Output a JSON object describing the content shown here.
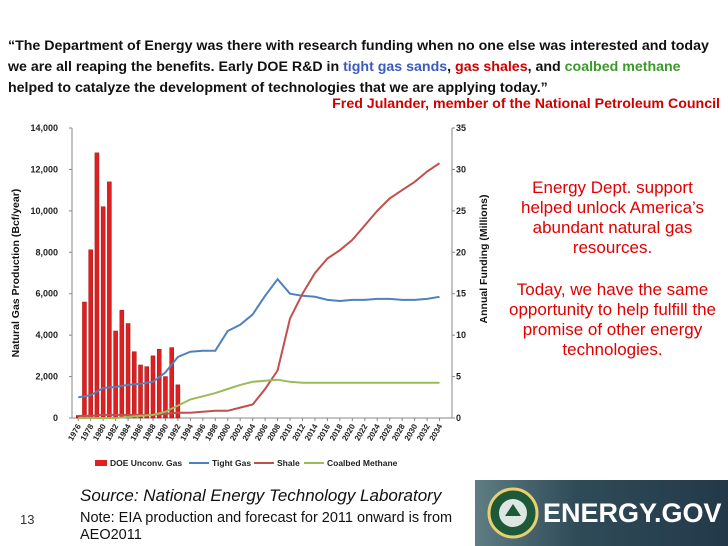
{
  "quote": [
    {
      "text": "“The Department of Energy was there with research funding when no one else was interested and today we are all reaping the benefits. Early DOE R&D in ",
      "color": "#111111"
    },
    {
      "text": "tight gas sands",
      "color": "#3b5bbf"
    },
    {
      "text": ", ",
      "color": "#111111"
    },
    {
      "text": "gas shales",
      "color": "#d00000"
    },
    {
      "text": ", and ",
      "color": "#111111"
    },
    {
      "text": "coalbed methane",
      "color": "#3a9a2a"
    },
    {
      "text": " helped to catalyze the development of technologies that we are applying today.”",
      "color": "#111111"
    }
  ],
  "attribution": "Fred Julander, member of the National Petroleum Council",
  "side_text": [
    "Energy Dept. support helped unlock America’s abundant natural gas resources.",
    "Today, we have the same opportunity to help fulfill the promise of other energy technologies."
  ],
  "footer": {
    "source": "Source: National Energy Technology Laboratory",
    "note": "Note: EIA production and forecast for 2011 onward is from AEO2011",
    "page_number": "13",
    "logo": "ENERGY.GOV"
  },
  "chart_data": {
    "type": "combo",
    "ylabel": "Natural Gas Production (Bcf/year)",
    "y2label": "Annual Funding (Millions)",
    "xlim": [
      1975,
      2036
    ],
    "xticks": [
      1976,
      1978,
      1980,
      1982,
      1984,
      1986,
      1988,
      1990,
      1992,
      1994,
      1996,
      1998,
      2000,
      2002,
      2004,
      2006,
      2008,
      2010,
      2012,
      2014,
      2016,
      2018,
      2020,
      2022,
      2024,
      2026,
      2028,
      2030,
      2032,
      2034
    ],
    "ylim": [
      0,
      14000
    ],
    "yticks": [
      0,
      {
        "value": 2000,
        "label": "2,000"
      },
      {
        "value": 4000,
        "label": "4,000"
      },
      {
        "value": 6000,
        "label": "6,000"
      },
      {
        "value": 8000,
        "label": "8,000"
      },
      {
        "value": 10000,
        "label": "10,000"
      },
      {
        "value": 12000,
        "label": "12,000"
      },
      {
        "value": 14000,
        "label": "14,000"
      }
    ],
    "y2lim": [
      0,
      35
    ],
    "y2ticks": [
      0,
      5,
      10,
      15,
      20,
      25,
      30,
      35
    ],
    "series": [
      {
        "name": "DOE Unconv. Gas",
        "type": "bar",
        "axis": "y2",
        "color": "#e02020",
        "x": [
          1976,
          1977,
          1978,
          1979,
          1980,
          1981,
          1982,
          1983,
          1984,
          1985,
          1986,
          1987,
          1988,
          1989,
          1990,
          1991,
          1992
        ],
        "values": [
          0.3,
          14,
          20.3,
          32,
          25.5,
          28.5,
          10.5,
          13,
          11.4,
          8,
          6.4,
          6.2,
          7.5,
          8.3,
          5,
          8.5,
          4
        ]
      },
      {
        "name": "Tight Gas",
        "type": "line",
        "color": "#4f81bd",
        "x": [
          1976,
          1978,
          1980,
          1982,
          1984,
          1986,
          1988,
          1990,
          1992,
          1994,
          1996,
          1998,
          2000,
          2002,
          2004,
          2006,
          2008,
          2010,
          2012,
          2014,
          2016,
          2018,
          2020,
          2022,
          2024,
          2026,
          2028,
          2030,
          2032,
          2034
        ],
        "values": [
          1000,
          1100,
          1450,
          1500,
          1600,
          1650,
          1750,
          2200,
          2950,
          3200,
          3250,
          3250,
          4200,
          4500,
          5000,
          5900,
          6700,
          6000,
          5900,
          5850,
          5700,
          5650,
          5700,
          5700,
          5750,
          5750,
          5700,
          5700,
          5750,
          5850
        ]
      },
      {
        "name": "Shale",
        "type": "line",
        "color": "#c0504d",
        "x": [
          1976,
          1978,
          1980,
          1982,
          1984,
          1986,
          1988,
          1990,
          1992,
          1994,
          1996,
          1998,
          2000,
          2002,
          2004,
          2006,
          2008,
          2010,
          2012,
          2014,
          2016,
          2018,
          2020,
          2022,
          2024,
          2026,
          2028,
          2030,
          2032,
          2034
        ],
        "values": [
          100,
          100,
          150,
          150,
          150,
          150,
          150,
          200,
          250,
          250,
          300,
          350,
          350,
          500,
          650,
          1400,
          2300,
          4800,
          6000,
          7000,
          7700,
          8100,
          8600,
          9300,
          10000,
          10600,
          11000,
          11400,
          11900,
          12300
        ]
      },
      {
        "name": "Coalbed Methane",
        "type": "line",
        "color": "#9bbb59",
        "x": [
          1976,
          1978,
          1980,
          1982,
          1984,
          1986,
          1988,
          1990,
          1992,
          1994,
          1996,
          1998,
          2000,
          2002,
          2004,
          2006,
          2008,
          2010,
          2012,
          2014,
          2016,
          2018,
          2020,
          2022,
          2024,
          2026,
          2028,
          2030,
          2032,
          2034
        ],
        "values": [
          0,
          0,
          0,
          0,
          50,
          100,
          150,
          300,
          600,
          900,
          1050,
          1200,
          1400,
          1600,
          1750,
          1800,
          1850,
          1750,
          1700,
          1700,
          1700,
          1700,
          1700,
          1700,
          1700,
          1700,
          1700,
          1700,
          1700,
          1700
        ]
      }
    ]
  }
}
